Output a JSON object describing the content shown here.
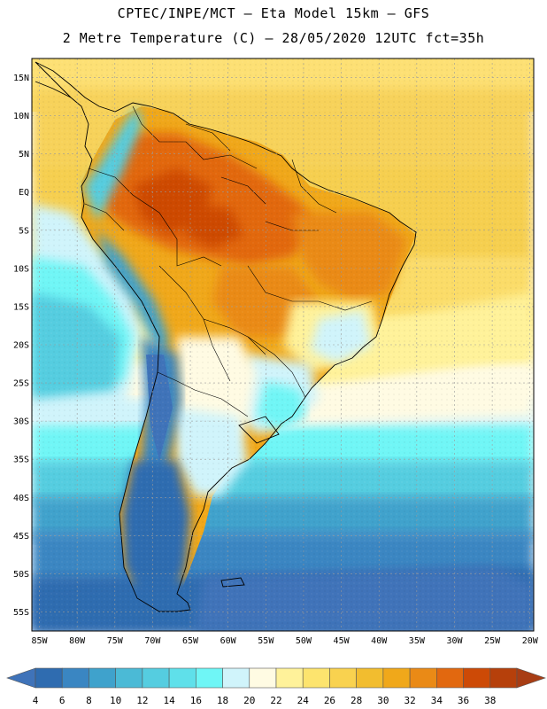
{
  "header": {
    "line1": "CPTEC/INPE/MCT –  Eta Model 15km – GFS",
    "line2": "2 Metre Temperature (C) – 28/05/2020 12UTC fct=35h"
  },
  "map": {
    "lat_ticks": [
      "15N",
      "10N",
      "5N",
      "EQ",
      "5S",
      "10S",
      "15S",
      "20S",
      "25S",
      "30S",
      "35S",
      "40S",
      "45S",
      "50S",
      "55S"
    ],
    "lon_ticks": [
      "85W",
      "80W",
      "75W",
      "70W",
      "65W",
      "60W",
      "55W",
      "50W",
      "45W",
      "40W",
      "35W",
      "30W",
      "25W",
      "20W"
    ],
    "lat_range": [
      17.5,
      -57.5
    ],
    "lon_range": [
      -86,
      -19.5
    ]
  },
  "colorbar": {
    "labels": [
      "4",
      "6",
      "8",
      "10",
      "12",
      "14",
      "16",
      "18",
      "20",
      "22",
      "24",
      "26",
      "28",
      "30",
      "32",
      "34",
      "36",
      "38"
    ],
    "colors": [
      "#3f73b9",
      "#2f6cb0",
      "#3a86c2",
      "#3fa2cc",
      "#4bbad6",
      "#55cde0",
      "#5fe0ea",
      "#6ff6f6",
      "#d0f4fb",
      "#fffbe3",
      "#fff29a",
      "#fde46e",
      "#f9d24f",
      "#f2bd2f",
      "#f0a81a",
      "#ea8a16",
      "#e2680f",
      "#cd4a06",
      "#b6400b",
      "#a83d14"
    ]
  }
}
